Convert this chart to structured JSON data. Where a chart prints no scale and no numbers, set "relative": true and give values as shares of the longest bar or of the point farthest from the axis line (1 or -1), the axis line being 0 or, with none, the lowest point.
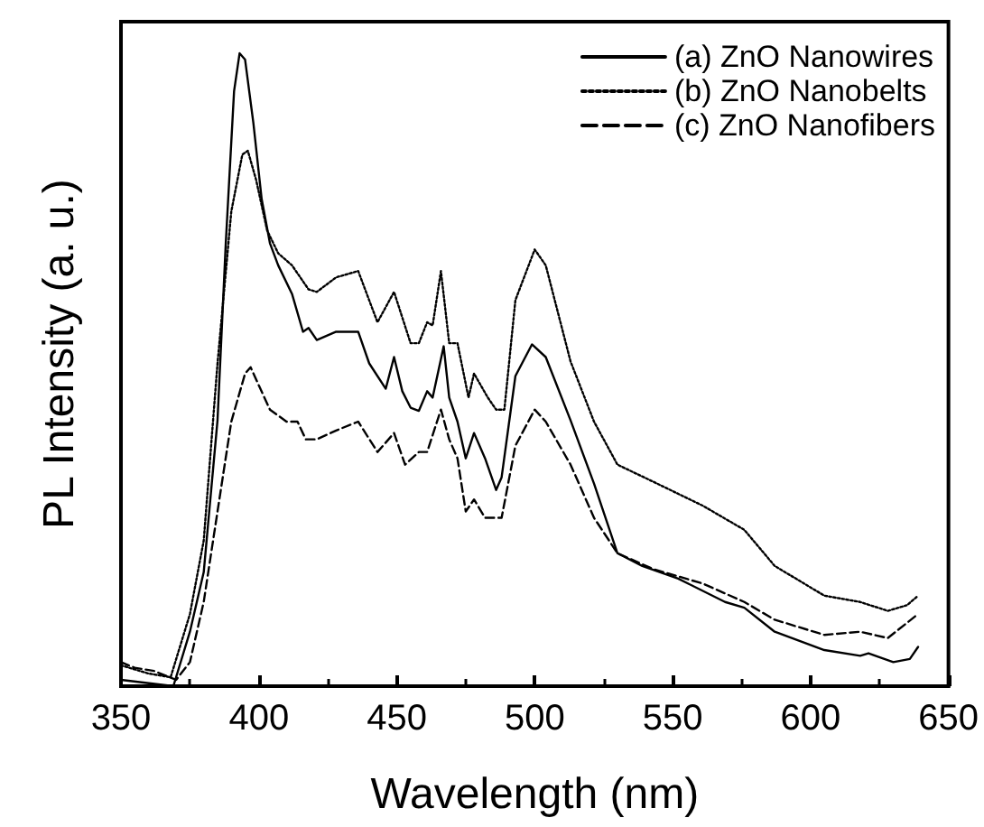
{
  "chart_data": {
    "type": "line",
    "relative": true,
    "xlabel": "Wavelength (nm)",
    "ylabel": "PL Intensity (a. u.)",
    "xlim": [
      350,
      650
    ],
    "xticks": [
      350,
      400,
      450,
      500,
      550,
      600,
      650
    ],
    "legend": "top right",
    "grid": false,
    "marker": "none",
    "series": [
      {
        "name": "(a) ZnO Nanowires",
        "color": "#000000",
        "line_style": "solid",
        "x": [
          350,
          369,
          375,
          380,
          385,
          388,
          391,
          393,
          395,
          398,
          401,
          404,
          407,
          412,
          416,
          418,
          421,
          428,
          436,
          440,
          446,
          449,
          452,
          455,
          458,
          461,
          463,
          467,
          469,
          472,
          475,
          478,
          482,
          486,
          488,
          493,
          499,
          504,
          513,
          521.5,
          530,
          539,
          552,
          569,
          576,
          587,
          605,
          618,
          621,
          630,
          636,
          639
        ],
        "values": [
          0.01,
          0.0,
          0.086,
          0.18,
          0.42,
          0.7,
          0.94,
          1.0,
          0.99,
          0.89,
          0.77,
          0.7,
          0.665,
          0.62,
          0.56,
          0.566,
          0.547,
          0.56,
          0.56,
          0.51,
          0.47,
          0.52,
          0.466,
          0.44,
          0.435,
          0.466,
          0.456,
          0.537,
          0.456,
          0.418,
          0.36,
          0.4,
          0.36,
          0.31,
          0.33,
          0.49,
          0.54,
          0.52,
          0.42,
          0.32,
          0.21,
          0.19,
          0.17,
          0.133,
          0.124,
          0.086,
          0.057,
          0.048,
          0.052,
          0.038,
          0.043,
          0.062
        ]
      },
      {
        "name": "(b) ZnO Nanobelts",
        "color": "#000000",
        "line_style": "dotted",
        "x": [
          350,
          360,
          368,
          375,
          380,
          385,
          390,
          394,
          396,
          399,
          403,
          407,
          412,
          418,
          421,
          428,
          436,
          443,
          449,
          455,
          458,
          461,
          463,
          466,
          469,
          472,
          476,
          478,
          483,
          486,
          489,
          493,
          500,
          504,
          513,
          521.5,
          530,
          543,
          561,
          576,
          587,
          605,
          618,
          628,
          635,
          639
        ],
        "values": [
          0.033,
          0.02,
          0.014,
          0.114,
          0.23,
          0.51,
          0.75,
          0.84,
          0.846,
          0.8,
          0.72,
          0.684,
          0.665,
          0.627,
          0.623,
          0.646,
          0.656,
          0.575,
          0.623,
          0.542,
          0.542,
          0.575,
          0.57,
          0.656,
          0.542,
          0.542,
          0.456,
          0.494,
          0.456,
          0.437,
          0.437,
          0.61,
          0.69,
          0.665,
          0.513,
          0.418,
          0.35,
          0.323,
          0.285,
          0.247,
          0.19,
          0.143,
          0.133,
          0.119,
          0.128,
          0.143
        ]
      },
      {
        "name": "(c) ZnO Nanofibers",
        "color": "#000000",
        "line_style": "dashed",
        "x": [
          350,
          355,
          362,
          370,
          375,
          380,
          385,
          390,
          395,
          397,
          400,
          404,
          410,
          414,
          417,
          421,
          428,
          436,
          443,
          449,
          453,
          458,
          461,
          466,
          469,
          472,
          475,
          478,
          482,
          486,
          488,
          493,
          500,
          504,
          513,
          521.5,
          530,
          543,
          561,
          576,
          587,
          605,
          618,
          628,
          639
        ],
        "values": [
          0.038,
          0.029,
          0.024,
          0.01,
          0.038,
          0.133,
          0.276,
          0.418,
          0.494,
          0.504,
          0.475,
          0.437,
          0.418,
          0.418,
          0.39,
          0.39,
          0.404,
          0.418,
          0.37,
          0.4,
          0.35,
          0.37,
          0.37,
          0.437,
          0.39,
          0.36,
          0.276,
          0.295,
          0.266,
          0.266,
          0.266,
          0.38,
          0.437,
          0.418,
          0.35,
          0.266,
          0.21,
          0.185,
          0.162,
          0.133,
          0.105,
          0.081,
          0.086,
          0.076,
          0.114
        ]
      }
    ]
  }
}
